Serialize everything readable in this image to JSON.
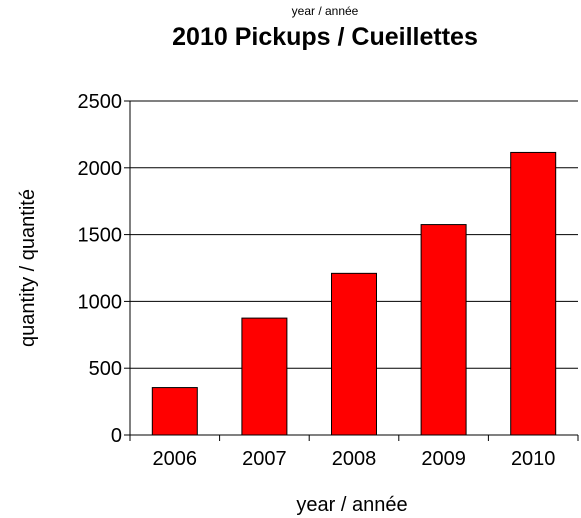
{
  "chart_data": {
    "type": "bar",
    "title": "2010 Pickups / Cueillettes",
    "subtitle": "year / année",
    "xlabel": "year / année",
    "ylabel": "quantity / quantité",
    "categories": [
      "2006",
      "2007",
      "2008",
      "2009",
      "2010"
    ],
    "values": [
      355,
      875,
      1210,
      1575,
      2115
    ],
    "ylim": [
      0,
      2500
    ],
    "yticks": [
      0,
      500,
      1000,
      1500,
      2000,
      2500
    ],
    "grid": true,
    "colors": {
      "bar": "#ff0000",
      "bar_outline": "#000000",
      "grid": "#000000"
    }
  }
}
